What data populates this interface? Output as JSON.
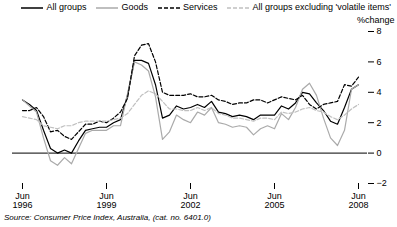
{
  "chart_data": {
    "type": "line",
    "y_label": "%change",
    "source": "Source: Consumer Price Index, Australia, (cat. no. 6401.0)",
    "categories": [
      "Jun\n1996",
      null,
      null,
      null,
      null,
      null,
      null,
      null,
      null,
      null,
      null,
      null,
      "Jun\n1999",
      null,
      null,
      null,
      null,
      null,
      null,
      null,
      null,
      null,
      null,
      null,
      "Jun\n2002",
      null,
      null,
      null,
      null,
      null,
      null,
      null,
      null,
      null,
      null,
      null,
      "Jun\n2005",
      null,
      null,
      null,
      null,
      null,
      null,
      null,
      null,
      null,
      null,
      null,
      "Jun\n2008"
    ],
    "ylim": [
      -2,
      8
    ],
    "yticks": [
      -2,
      0,
      2,
      4,
      6,
      8
    ],
    "grid": false,
    "legend": "top",
    "series": [
      {
        "name": "All groups",
        "color": "#000000",
        "line_style": "solid",
        "values": [
          3.5,
          3.2,
          2.8,
          1.5,
          0.3,
          0.0,
          0.2,
          0.0,
          0.8,
          1.5,
          1.6,
          1.7,
          1.7,
          2.0,
          2.2,
          3.8,
          6.1,
          6.1,
          5.9,
          4.5,
          2.3,
          2.5,
          3.1,
          2.9,
          3.0,
          3.2,
          3.0,
          3.4,
          2.7,
          2.6,
          2.4,
          2.5,
          2.4,
          2.2,
          2.5,
          2.5,
          2.5,
          3.1,
          2.9,
          3.3,
          4.0,
          3.9,
          3.3,
          2.8,
          2.1,
          1.9,
          3.0,
          4.2,
          4.5
        ]
      },
      {
        "name": "Goods",
        "color": "#aaaaaa",
        "line_style": "solid",
        "values": [
          3.5,
          3.1,
          2.7,
          1.0,
          -0.5,
          -0.8,
          -0.3,
          -0.7,
          0.3,
          1.3,
          1.5,
          1.5,
          1.5,
          1.8,
          1.8,
          3.9,
          6.0,
          5.8,
          5.4,
          3.7,
          0.9,
          1.4,
          2.5,
          2.2,
          2.0,
          2.7,
          2.5,
          3.0,
          2.0,
          1.9,
          1.7,
          1.8,
          1.7,
          1.2,
          1.6,
          1.8,
          1.6,
          2.6,
          2.2,
          3.0,
          4.2,
          4.6,
          3.8,
          2.3,
          1.0,
          0.5,
          1.5,
          4.2,
          4.5
        ]
      },
      {
        "name": "Services",
        "color": "#000000",
        "line_style": "dashed",
        "values": [
          2.8,
          2.8,
          3.0,
          2.4,
          1.4,
          1.5,
          1.1,
          0.9,
          1.4,
          1.9,
          1.9,
          2.1,
          2.0,
          2.3,
          2.7,
          3.6,
          6.4,
          7.1,
          7.2,
          6.0,
          4.0,
          3.8,
          3.8,
          3.8,
          3.9,
          3.7,
          3.7,
          3.8,
          3.5,
          3.4,
          3.2,
          3.3,
          3.3,
          3.5,
          3.5,
          3.3,
          3.5,
          3.7,
          3.6,
          3.5,
          3.8,
          3.2,
          2.9,
          3.2,
          3.3,
          3.4,
          4.5,
          4.4,
          5.0
        ]
      },
      {
        "name": "All groups excluding 'volatile items'",
        "color": "#c0c0c0",
        "line_style": "dashed",
        "values": [
          2.4,
          2.3,
          2.2,
          1.8,
          1.7,
          1.6,
          1.8,
          1.8,
          2.0,
          2.1,
          2.1,
          2.1,
          2.1,
          2.2,
          2.3,
          2.6,
          3.2,
          3.8,
          4.1,
          3.9,
          3.4,
          2.9,
          2.9,
          2.8,
          2.8,
          3.0,
          2.8,
          3.0,
          2.6,
          2.5,
          2.3,
          2.3,
          2.2,
          2.1,
          2.3,
          2.3,
          2.2,
          2.7,
          2.6,
          2.7,
          2.9,
          3.0,
          2.8,
          2.7,
          2.4,
          2.2,
          2.5,
          2.9,
          3.2
        ]
      }
    ]
  }
}
